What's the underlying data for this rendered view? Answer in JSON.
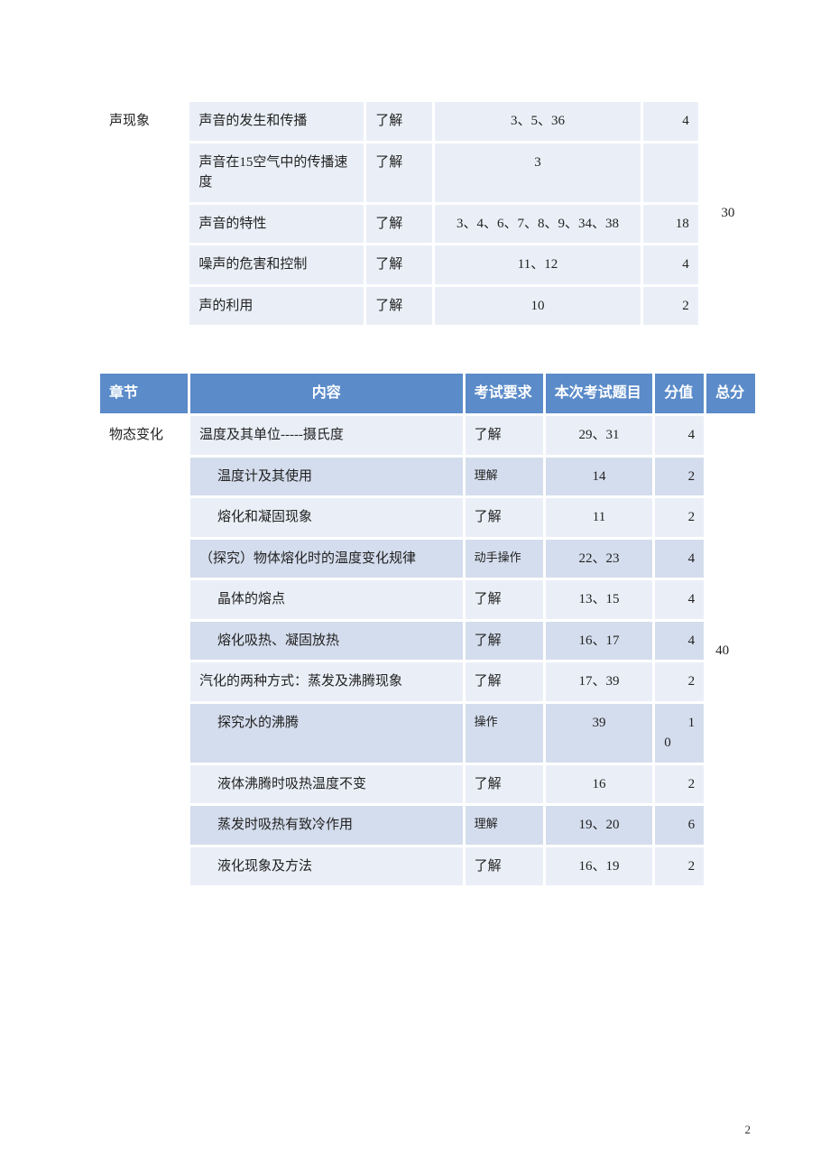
{
  "table1": {
    "chapter": "声现象",
    "total": "30",
    "rows": [
      {
        "content": "声音的发生和传播",
        "req": "了解",
        "items": "3、5、36",
        "score": "4"
      },
      {
        "content": "声音在15空气中的传播速度",
        "req": "了解",
        "items": "3",
        "score": ""
      },
      {
        "content": "声音的特性",
        "req": "了解",
        "items": "3、4、6、7、8、9、34、38",
        "score": "18"
      },
      {
        "content": "噪声的危害和控制",
        "req": "了解",
        "items": "11、12",
        "score": "4"
      },
      {
        "content": "声的利用",
        "req": "了解",
        "items": "10",
        "score": "2"
      }
    ]
  },
  "table2": {
    "headers": {
      "chapter": "章节",
      "content": "内容",
      "req": "考试要求",
      "items": "本次考试题目",
      "score": "分值",
      "total": "总分"
    },
    "chapter": "物态变化",
    "total": "40",
    "rows": [
      {
        "content": "温度及其单位-----摄氏度",
        "indent": false,
        "req": "了解",
        "reqSmall": false,
        "items": "29、31",
        "score": "4",
        "scoreB": ""
      },
      {
        "content": "温度计及其使用",
        "indent": true,
        "req": "理解",
        "reqSmall": true,
        "items": "14",
        "score": "2",
        "scoreB": ""
      },
      {
        "content": "熔化和凝固现象",
        "indent": true,
        "req": "了解",
        "reqSmall": false,
        "items": "11",
        "score": "2",
        "scoreB": ""
      },
      {
        "content": "（探究）物体熔化时的温度变化规律",
        "indent": false,
        "req": "动手操作",
        "reqSmall": true,
        "items": "22、23",
        "score": "4",
        "scoreB": ""
      },
      {
        "content": "晶体的熔点",
        "indent": true,
        "req": "了解",
        "reqSmall": false,
        "items": "13、15",
        "score": "4",
        "scoreB": ""
      },
      {
        "content": "熔化吸热、凝固放热",
        "indent": true,
        "req": "了解",
        "reqSmall": false,
        "items": "16、17",
        "score": "4",
        "scoreB": ""
      },
      {
        "content": "汽化的两种方式：蒸发及沸腾现象",
        "indent": false,
        "req": "了解",
        "reqSmall": false,
        "items": "17、39",
        "score": "2",
        "scoreB": ""
      },
      {
        "content": "探究水的沸腾",
        "indent": true,
        "req": "操作",
        "reqSmall": true,
        "items": "39",
        "score": "1",
        "scoreB": "0"
      },
      {
        "content": "液体沸腾时吸热温度不变",
        "indent": true,
        "req": "了解",
        "reqSmall": false,
        "items": "16",
        "score": "2",
        "scoreB": ""
      },
      {
        "content": "蒸发时吸热有致冷作用",
        "indent": true,
        "req": "理解",
        "reqSmall": true,
        "items": "19、20",
        "score": "6",
        "scoreB": ""
      },
      {
        "content": "液化现象及方法",
        "indent": true,
        "req": "了解",
        "reqSmall": false,
        "items": "16、19",
        "score": "2",
        "scoreB": ""
      }
    ]
  },
  "pageNumber": "2",
  "colors": {
    "headerBg": "#5b8bc9",
    "headerText": "#ffffff",
    "oddRow": "#eaeff7",
    "evenRow": "#d4dded",
    "plain": "#ffffff"
  }
}
